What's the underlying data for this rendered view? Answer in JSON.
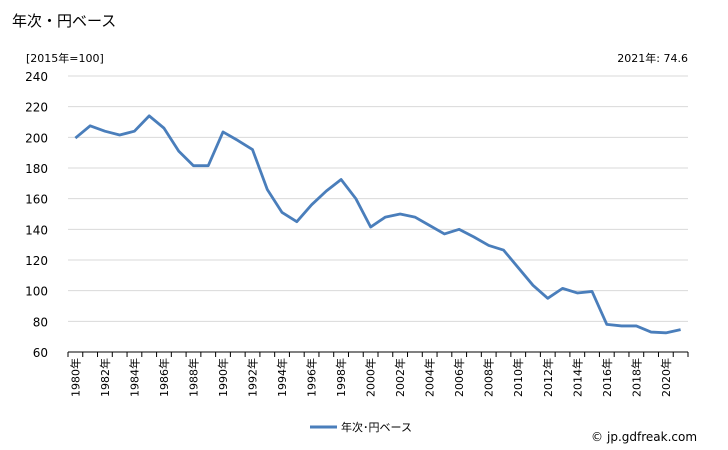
{
  "chart_data": {
    "type": "line",
    "title": "年次・円ベース",
    "ylabel": "[2015年=100]",
    "annotation": "2021年: 74.6",
    "ylim": [
      60,
      240
    ],
    "yticks": [
      60,
      80,
      100,
      120,
      140,
      160,
      180,
      200,
      220,
      240
    ],
    "grid": true,
    "legend_position": "bottom",
    "x": [
      "1980年",
      "1981年",
      "1982年",
      "1983年",
      "1984年",
      "1985年",
      "1986年",
      "1987年",
      "1988年",
      "1989年",
      "1990年",
      "1991年",
      "1992年",
      "1993年",
      "1994年",
      "1995年",
      "1996年",
      "1997年",
      "1998年",
      "1999年",
      "2000年",
      "2001年",
      "2002年",
      "2003年",
      "2004年",
      "2005年",
      "2006年",
      "2007年",
      "2008年",
      "2009年",
      "2010年",
      "2011年",
      "2012年",
      "2013年",
      "2014年",
      "2015年",
      "2016年",
      "2017年",
      "2018年",
      "2019年",
      "2020年",
      "2021年"
    ],
    "xtick_labels": [
      "1980年",
      "1982年",
      "1984年",
      "1986年",
      "1988年",
      "1990年",
      "1992年",
      "1994年",
      "1996年",
      "1998年",
      "2000年",
      "2002年",
      "2004年",
      "2006年",
      "2008年",
      "2010年",
      "2012年",
      "2014年",
      "2016年",
      "2018年",
      "2020年"
    ],
    "series": [
      {
        "name": "年次･円ベース",
        "color": "#4a7ebb",
        "values": [
          199.5,
          207.5,
          204,
          201.5,
          204,
          214,
          206,
          191,
          181.5,
          181.5,
          203.5,
          198,
          192,
          166,
          151,
          145,
          156,
          165,
          172.5,
          160,
          141.5,
          148,
          150,
          148,
          142.5,
          137,
          140,
          135,
          129.5,
          126.5,
          115,
          103.5,
          95,
          101.5,
          98.5,
          99.5,
          78,
          77,
          77,
          73,
          72.5,
          74.6
        ]
      }
    ]
  },
  "footer": {
    "copyright_symbol": "©",
    "site": "jp.gdfreak.com"
  }
}
